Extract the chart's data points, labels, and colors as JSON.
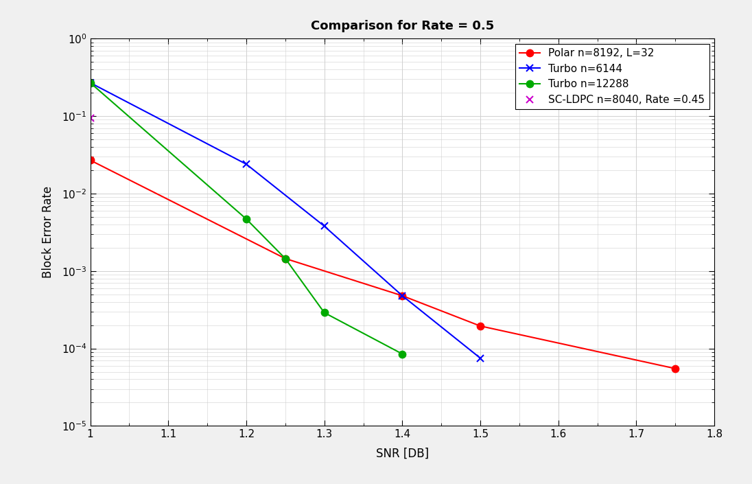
{
  "title": "Comparison for Rate = 0.5",
  "xlabel": "SNR [DB]",
  "ylabel": "Block Error Rate",
  "xlim": [
    1.0,
    1.8
  ],
  "ylim_log": [
    -5,
    0
  ],
  "fig_facecolor": "#f0f0f0",
  "axes_facecolor": "#ffffff",
  "grid_color": "#d0d0d0",
  "series": [
    {
      "label": "Polar n=8192, L=32",
      "color": "#ff0000",
      "marker": "o",
      "linestyle": "-",
      "x": [
        1.0,
        1.25,
        1.4,
        1.5,
        1.75
      ],
      "y": [
        0.027,
        0.00145,
        0.00048,
        0.000195,
        5.5e-05
      ],
      "marker_filled": true
    },
    {
      "label": "Turbo n=6144",
      "color": "#0000ff",
      "marker": "x",
      "linestyle": "-",
      "x": [
        1.0,
        1.2,
        1.3,
        1.4,
        1.5
      ],
      "y": [
        0.27,
        0.024,
        0.0038,
        0.00048,
        7.5e-05
      ],
      "marker_filled": false
    },
    {
      "label": "Turbo n=12288",
      "color": "#00aa00",
      "marker": "o",
      "linestyle": "-",
      "x": [
        1.0,
        1.2,
        1.25,
        1.3,
        1.4
      ],
      "y": [
        0.27,
        0.0047,
        0.00145,
        0.00029,
        8.5e-05
      ],
      "marker_filled": true
    },
    {
      "label": "SC-LDPC n=8040, Rate =0.45",
      "color": "#cc00cc",
      "marker": "x",
      "linestyle": "none",
      "x": [
        1.0
      ],
      "y": [
        0.095
      ],
      "marker_filled": false
    }
  ],
  "legend_loc": "upper right",
  "title_fontsize": 13,
  "axis_label_fontsize": 12,
  "tick_fontsize": 11,
  "legend_fontsize": 11,
  "marker_size": 7,
  "marker_edge_width": 1.5,
  "linewidth": 1.5
}
